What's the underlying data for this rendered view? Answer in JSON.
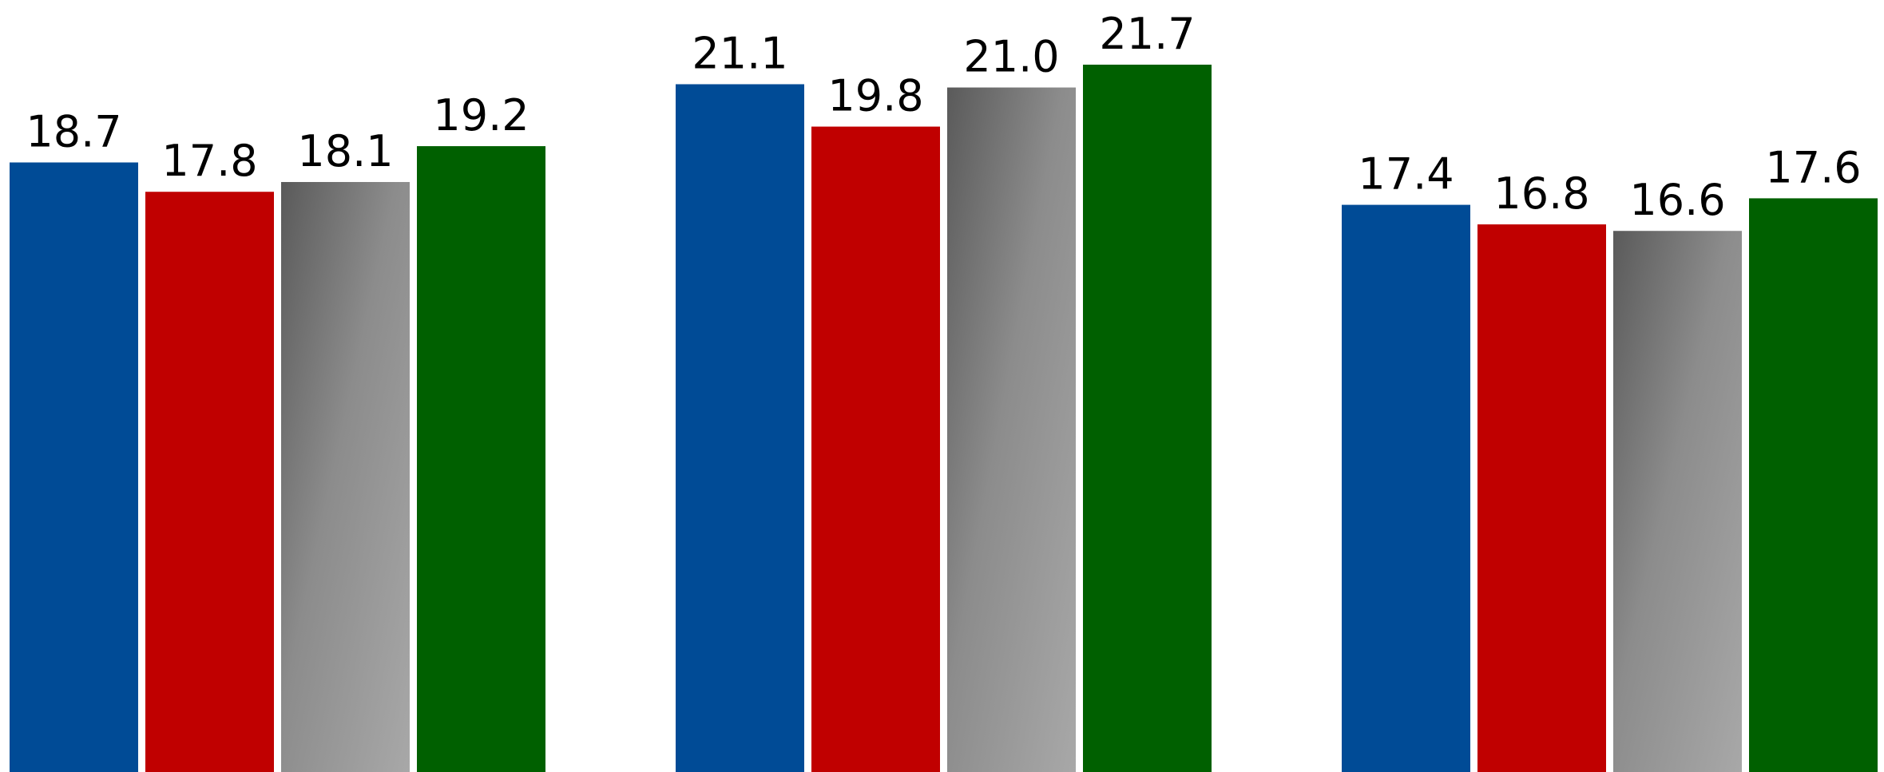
{
  "chart_data": {
    "type": "bar",
    "title": "",
    "xlabel": "",
    "ylabel": "",
    "categories": [
      "",
      "",
      ""
    ],
    "series": [
      {
        "values": [
          18.7,
          21.1,
          17.4
        ],
        "color": "#004b96"
      },
      {
        "values": [
          17.8,
          19.8,
          16.8
        ],
        "color": "#c00000"
      },
      {
        "values": [
          18.1,
          21.0,
          16.6
        ],
        "color": "gray-gradient"
      },
      {
        "values": [
          19.2,
          21.7,
          17.6
        ],
        "color": "#006000"
      }
    ],
    "value_labels": [
      [
        "18.7",
        "21.1",
        "17.4"
      ],
      [
        "17.8",
        "19.8",
        "16.8"
      ],
      [
        "18.1",
        "21.0",
        "16.6"
      ],
      [
        "19.2",
        "21.7",
        "17.6"
      ]
    ],
    "ylim": [
      0,
      21.7
    ],
    "grid": false,
    "legend": "none"
  }
}
